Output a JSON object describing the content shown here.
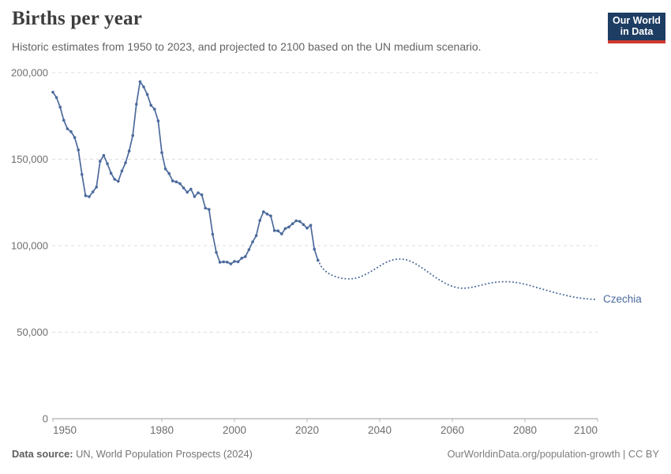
{
  "header": {
    "title": "Births per year",
    "subtitle": "Historic estimates from 1950 to 2023, and projected to 2100 based on the UN medium scenario.",
    "logo": {
      "line1": "Our World",
      "line2": "in Data",
      "bg_color": "#1d3d63",
      "stripe_color": "#cf3a30"
    }
  },
  "footer": {
    "source_label": "Data source:",
    "source_text": "UN, World Population Prospects (2024)",
    "credit": "OurWorldinData.org/population-growth | CC BY"
  },
  "chart_data": {
    "type": "line",
    "title": "Births per year",
    "subtitle": "Historic estimates from 1950 to 2023, and projected to 2100 based on the UN medium scenario.",
    "entity": "Czechia",
    "entity_label": "Czechia",
    "xlabel": "",
    "ylabel": "",
    "xlim": [
      1950,
      2100
    ],
    "ylim": [
      0,
      200000
    ],
    "x_ticks": [
      1950,
      1980,
      2000,
      2020,
      2040,
      2060,
      2080,
      2100
    ],
    "y_ticks": [
      0,
      50000,
      100000,
      150000,
      200000
    ],
    "y_tick_labels": [
      "0",
      "50,000",
      "100,000",
      "150,000",
      "200,000"
    ],
    "grid": true,
    "legend_position": "end-of-line",
    "colors": {
      "line": "#4c6a9c",
      "grid": "#dcdcdc",
      "axis": "#9a9a9a",
      "tick": "#b3b3b3",
      "tick_text": "#6e6e6e"
    },
    "series": [
      {
        "name": "Czechia — historic estimates",
        "style": "solid-with-markers",
        "start_year": 1950,
        "values": [
          188700,
          185600,
          180100,
          172500,
          167600,
          165900,
          162500,
          155400,
          141200,
          128900,
          128300,
          131100,
          133900,
          148800,
          152200,
          147400,
          141900,
          138400,
          137200,
          143200,
          147900,
          154700,
          163700,
          181800,
          194800,
          191800,
          187400,
          181200,
          178900,
          172100,
          153800,
          144400,
          141700,
          137400,
          136900,
          135900,
          133400,
          130900,
          132700,
          128400,
          130600,
          129400,
          121700,
          121000,
          106600,
          96100,
          90400,
          90700,
          90500,
          89500,
          90900,
          90700,
          92800,
          93700,
          97700,
          102200,
          105800,
          114600,
          119600,
          118300,
          117200,
          108700,
          108600,
          106800,
          109900,
          110800,
          112700,
          114400,
          114000,
          112200,
          110200,
          111800,
          98000,
          91500
        ]
      },
      {
        "name": "Czechia — UN medium scenario projection",
        "style": "dotted",
        "start_year": 2023,
        "values": [
          91500,
          87600,
          85400,
          83900,
          82800,
          82000,
          81400,
          81000,
          80800,
          80800,
          81000,
          81500,
          82300,
          83300,
          84400,
          85600,
          86900,
          88200,
          89500,
          90600,
          91400,
          92000,
          92300,
          92300,
          92000,
          91400,
          90500,
          89400,
          88100,
          86700,
          85200,
          83700,
          82200,
          80800,
          79500,
          78300,
          77300,
          76500,
          75900,
          75500,
          75400,
          75500,
          75800,
          76200,
          76700,
          77200,
          77700,
          78200,
          78600,
          78900,
          79100,
          79200,
          79200,
          79100,
          78900,
          78600,
          78200,
          77700,
          77200,
          76600,
          76000,
          75400,
          74800,
          74200,
          73600,
          73000,
          72400,
          71900,
          71400,
          70900,
          70500,
          70100,
          69800,
          69500,
          69300,
          69100,
          69000,
          68900
        ]
      }
    ]
  }
}
